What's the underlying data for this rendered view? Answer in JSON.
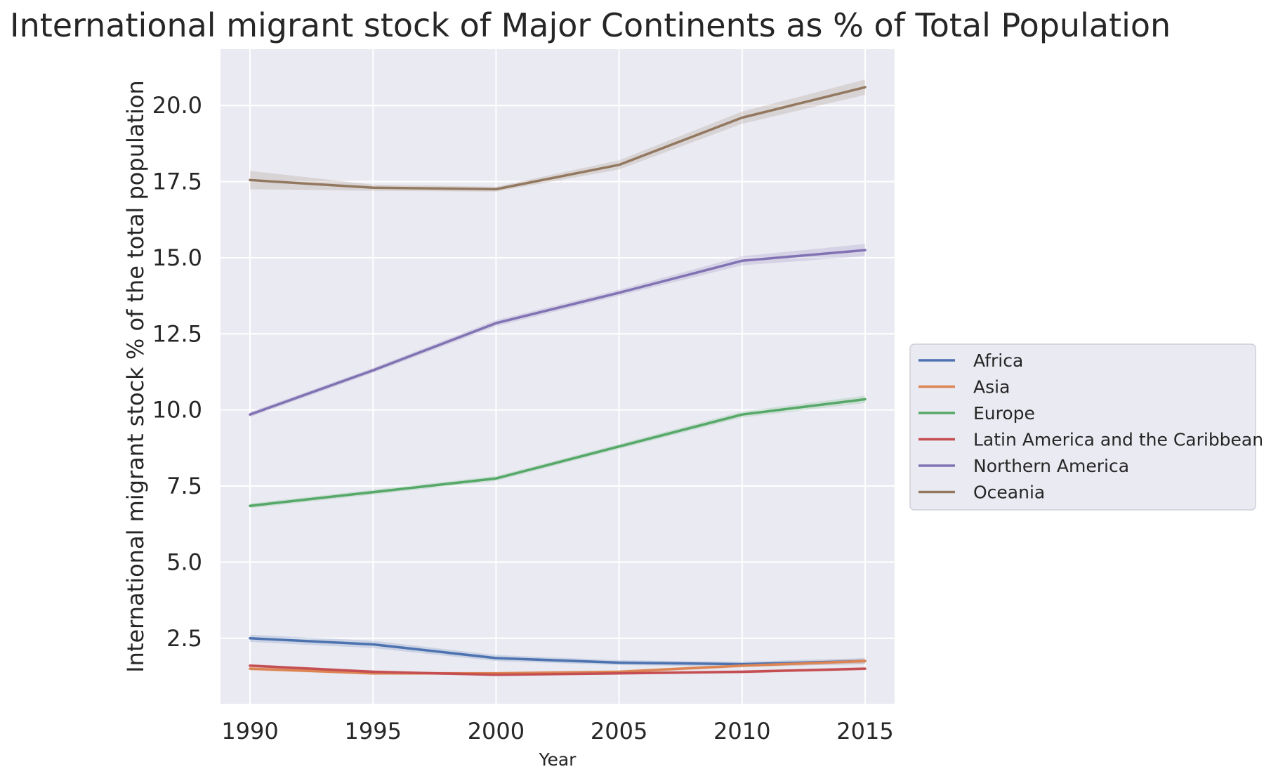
{
  "chart_data": {
    "type": "line",
    "title": "International migrant stock of Major Continents as % of Total Population",
    "xlabel": "Year",
    "ylabel": "International migrant stock % of the total population",
    "x": [
      1990,
      1995,
      2000,
      2005,
      2010,
      2015
    ],
    "x_ticks": [
      "1990",
      "1995",
      "2000",
      "2005",
      "2010",
      "2015"
    ],
    "y_ticks": [
      "2.5",
      "5.0",
      "7.5",
      "10.0",
      "12.5",
      "15.0",
      "17.5",
      "20.0"
    ],
    "y_tick_values": [
      2.5,
      5.0,
      7.5,
      10.0,
      12.5,
      15.0,
      17.5,
      20.0
    ],
    "xlim": [
      1988.8,
      2016.2
    ],
    "ylim": [
      0.35,
      21.85
    ],
    "grid": true,
    "legend_position": "center-right outside",
    "series": [
      {
        "name": "Africa",
        "color": "#4c72b0",
        "values": [
          2.5,
          2.3,
          1.85,
          1.7,
          1.65,
          1.75
        ],
        "band": [
          0.12,
          0.12,
          0.1,
          0.08,
          0.08,
          0.1
        ]
      },
      {
        "name": "Asia",
        "color": "#dd8452",
        "values": [
          1.5,
          1.35,
          1.35,
          1.4,
          1.6,
          1.75
        ],
        "band": [
          0.06,
          0.05,
          0.05,
          0.05,
          0.06,
          0.08
        ]
      },
      {
        "name": "Europe",
        "color": "#55a868",
        "values": [
          6.85,
          7.3,
          7.75,
          8.8,
          9.85,
          10.35
        ],
        "band": [
          0.08,
          0.08,
          0.08,
          0.08,
          0.1,
          0.12
        ]
      },
      {
        "name": "Latin America and the Caribbean",
        "color": "#c44e52",
        "values": [
          1.6,
          1.4,
          1.3,
          1.35,
          1.4,
          1.5
        ],
        "band": [
          0.05,
          0.05,
          0.04,
          0.04,
          0.05,
          0.05
        ]
      },
      {
        "name": "Northern America",
        "color": "#8172b3",
        "values": [
          9.85,
          11.3,
          12.85,
          13.85,
          14.9,
          15.25
        ],
        "band": [
          0.08,
          0.08,
          0.1,
          0.1,
          0.15,
          0.2
        ]
      },
      {
        "name": "Oceania",
        "color": "#937860",
        "values": [
          17.55,
          17.3,
          17.25,
          18.05,
          19.6,
          20.6
        ],
        "band": [
          0.3,
          0.1,
          0.08,
          0.15,
          0.2,
          0.25
        ]
      }
    ]
  }
}
